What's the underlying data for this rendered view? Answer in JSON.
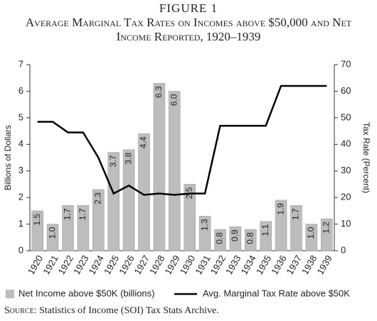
{
  "chart_data": {
    "type": "bar",
    "figure_label": "FIGURE 1",
    "title": "Average Marginal Tax Rates on Incomes above $50,000 and Net Income Reported, 1920–1939",
    "ylabel": "Billions of Dollars",
    "y2label": "Tax Rate (Percent)",
    "categories": [
      "1920",
      "1921",
      "1922",
      "1923",
      "1924",
      "1925",
      "1926",
      "1927",
      "1928",
      "1929",
      "1930",
      "1931",
      "1932",
      "1933",
      "1934",
      "1935",
      "1936",
      "1937",
      "1938",
      "1939"
    ],
    "series": [
      {
        "name": "Net Income above $50K (billions)",
        "type": "bar",
        "color": "#bdbdbd",
        "values": [
          1.5,
          1.0,
          1.7,
          1.7,
          2.3,
          3.7,
          3.8,
          4.4,
          6.3,
          6.0,
          2.5,
          1.3,
          0.8,
          0.9,
          0.8,
          1.1,
          1.9,
          1.7,
          1.0,
          1.2
        ],
        "value_labels": [
          "1.5",
          "1.0",
          "1.7",
          "1.7",
          "2.3",
          "3.7",
          "3.8",
          "4.4",
          "6.3",
          "6.0",
          "2.5",
          "1.3",
          "0.8",
          "0.9",
          "0.8",
          "1.1",
          "1.9",
          "1.7",
          "1.0",
          "1.2"
        ]
      },
      {
        "name": "Avg. Marginal Tax Rate above $50K",
        "type": "line",
        "axis": "y2",
        "color": "#000000",
        "values": [
          48.5,
          48.5,
          44.5,
          44.5,
          35,
          21.5,
          24.5,
          21,
          21.5,
          21,
          21.5,
          21.5,
          47,
          47,
          47,
          47,
          62,
          62,
          62,
          62
        ]
      }
    ],
    "ylim": [
      0,
      7
    ],
    "yticks": [
      0,
      1,
      2,
      3,
      4,
      5,
      6,
      7
    ],
    "y2lim": [
      0,
      70
    ],
    "y2ticks": [
      0,
      10,
      20,
      30,
      40,
      50,
      60,
      70
    ],
    "source_label": "Source:",
    "source": "Statistics of Income (SOI) Tax Stats Archive."
  }
}
